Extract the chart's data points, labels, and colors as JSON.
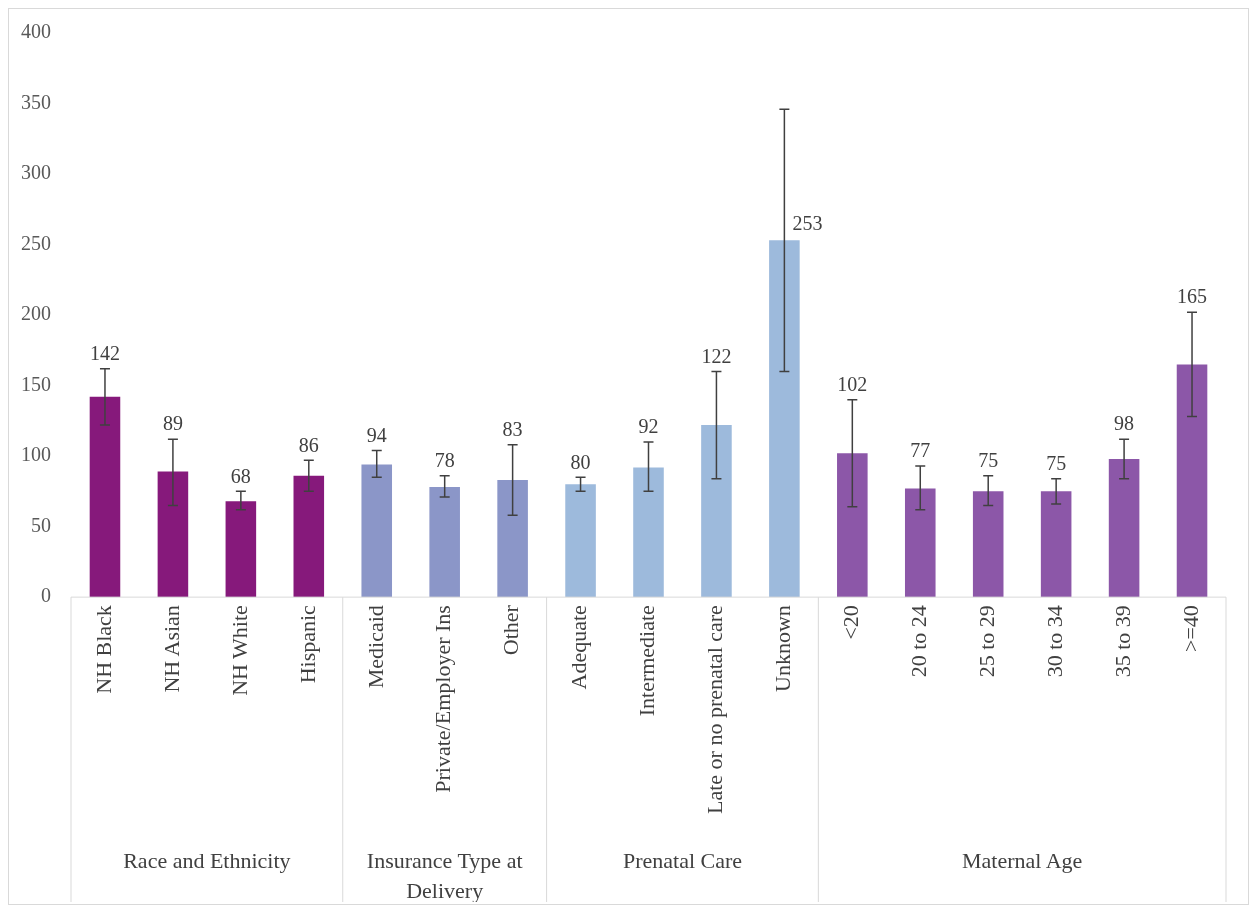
{
  "chart_data": {
    "type": "bar",
    "categories": [
      "NH Black",
      "NH Asian",
      "NH White",
      "Hispanic",
      "Medicaid",
      "Private/Employer Ins",
      "Other",
      "Adequate",
      "Intermediate",
      "Late or no prenatal care",
      "Unknown",
      "<20",
      "20 to 24",
      "25 to 29",
      "30 to 34",
      "35 to 39",
      ">=40"
    ],
    "values": [
      142,
      89,
      68,
      86,
      94,
      78,
      83,
      80,
      92,
      122,
      253,
      102,
      77,
      75,
      75,
      98,
      165
    ],
    "errors": [
      [
        122,
        162
      ],
      [
        65,
        112
      ],
      [
        62,
        75
      ],
      [
        75,
        97
      ],
      [
        85,
        104
      ],
      [
        71,
        86
      ],
      [
        58,
        108
      ],
      [
        75,
        85
      ],
      [
        75,
        110
      ],
      [
        84,
        160
      ],
      [
        160,
        346
      ],
      [
        64,
        140
      ],
      [
        62,
        93
      ],
      [
        65,
        86
      ],
      [
        66,
        84
      ],
      [
        84,
        112
      ],
      [
        128,
        202
      ]
    ],
    "colors": [
      "#86197b",
      "#86197b",
      "#86197b",
      "#86197b",
      "#8b96c8",
      "#8b96c8",
      "#8b96c8",
      "#9dbadc",
      "#9dbadc",
      "#9dbadc",
      "#9dbadc",
      "#8c57a8",
      "#8c57a8",
      "#8c57a8",
      "#8c57a8",
      "#8c57a8",
      "#8c57a8"
    ],
    "annotations": [
      "Race and Ethnicity",
      "Insurance Type at Delivery",
      "Prenatal Care",
      "Maternal Age"
    ],
    "ylim": [
      0,
      400
    ],
    "yticks": [
      0,
      50,
      100,
      150,
      200,
      250,
      300,
      350,
      400
    ],
    "data_labels": true,
    "grid": false,
    "legend": false
  }
}
